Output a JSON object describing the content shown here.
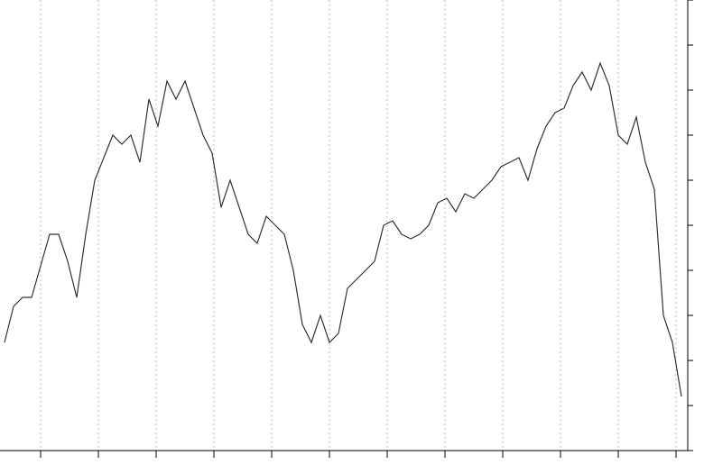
{
  "chart_data": {
    "type": "line",
    "values": [
      120,
      160,
      170,
      170,
      205,
      240,
      240,
      210,
      170,
      240,
      300,
      325,
      350,
      340,
      350,
      320,
      390,
      360,
      410,
      390,
      410,
      380,
      350,
      330,
      270,
      300,
      270,
      240,
      230,
      260,
      250,
      240,
      200,
      140,
      120,
      150,
      120,
      130,
      180,
      190,
      200,
      210,
      250,
      255,
      240,
      235,
      240,
      250,
      275,
      280,
      265,
      285,
      280,
      290,
      300,
      315,
      320,
      325,
      300,
      335,
      360,
      375,
      380,
      405,
      420,
      400,
      430,
      405,
      350,
      340,
      370,
      320,
      290,
      150,
      120,
      60
    ],
    "color": "#333333",
    "xlim": [
      -0.5,
      75.7
    ],
    "xticks": [
      4,
      10.4,
      16.8,
      23.2,
      29.6,
      36,
      42.4,
      48.8,
      55.2,
      61.6,
      68,
      74.4
    ],
    "ylim": [
      0,
      500
    ],
    "yticks": [
      0,
      50,
      100,
      150,
      200,
      250,
      300,
      350,
      400,
      450,
      500
    ],
    "grid": true
  }
}
